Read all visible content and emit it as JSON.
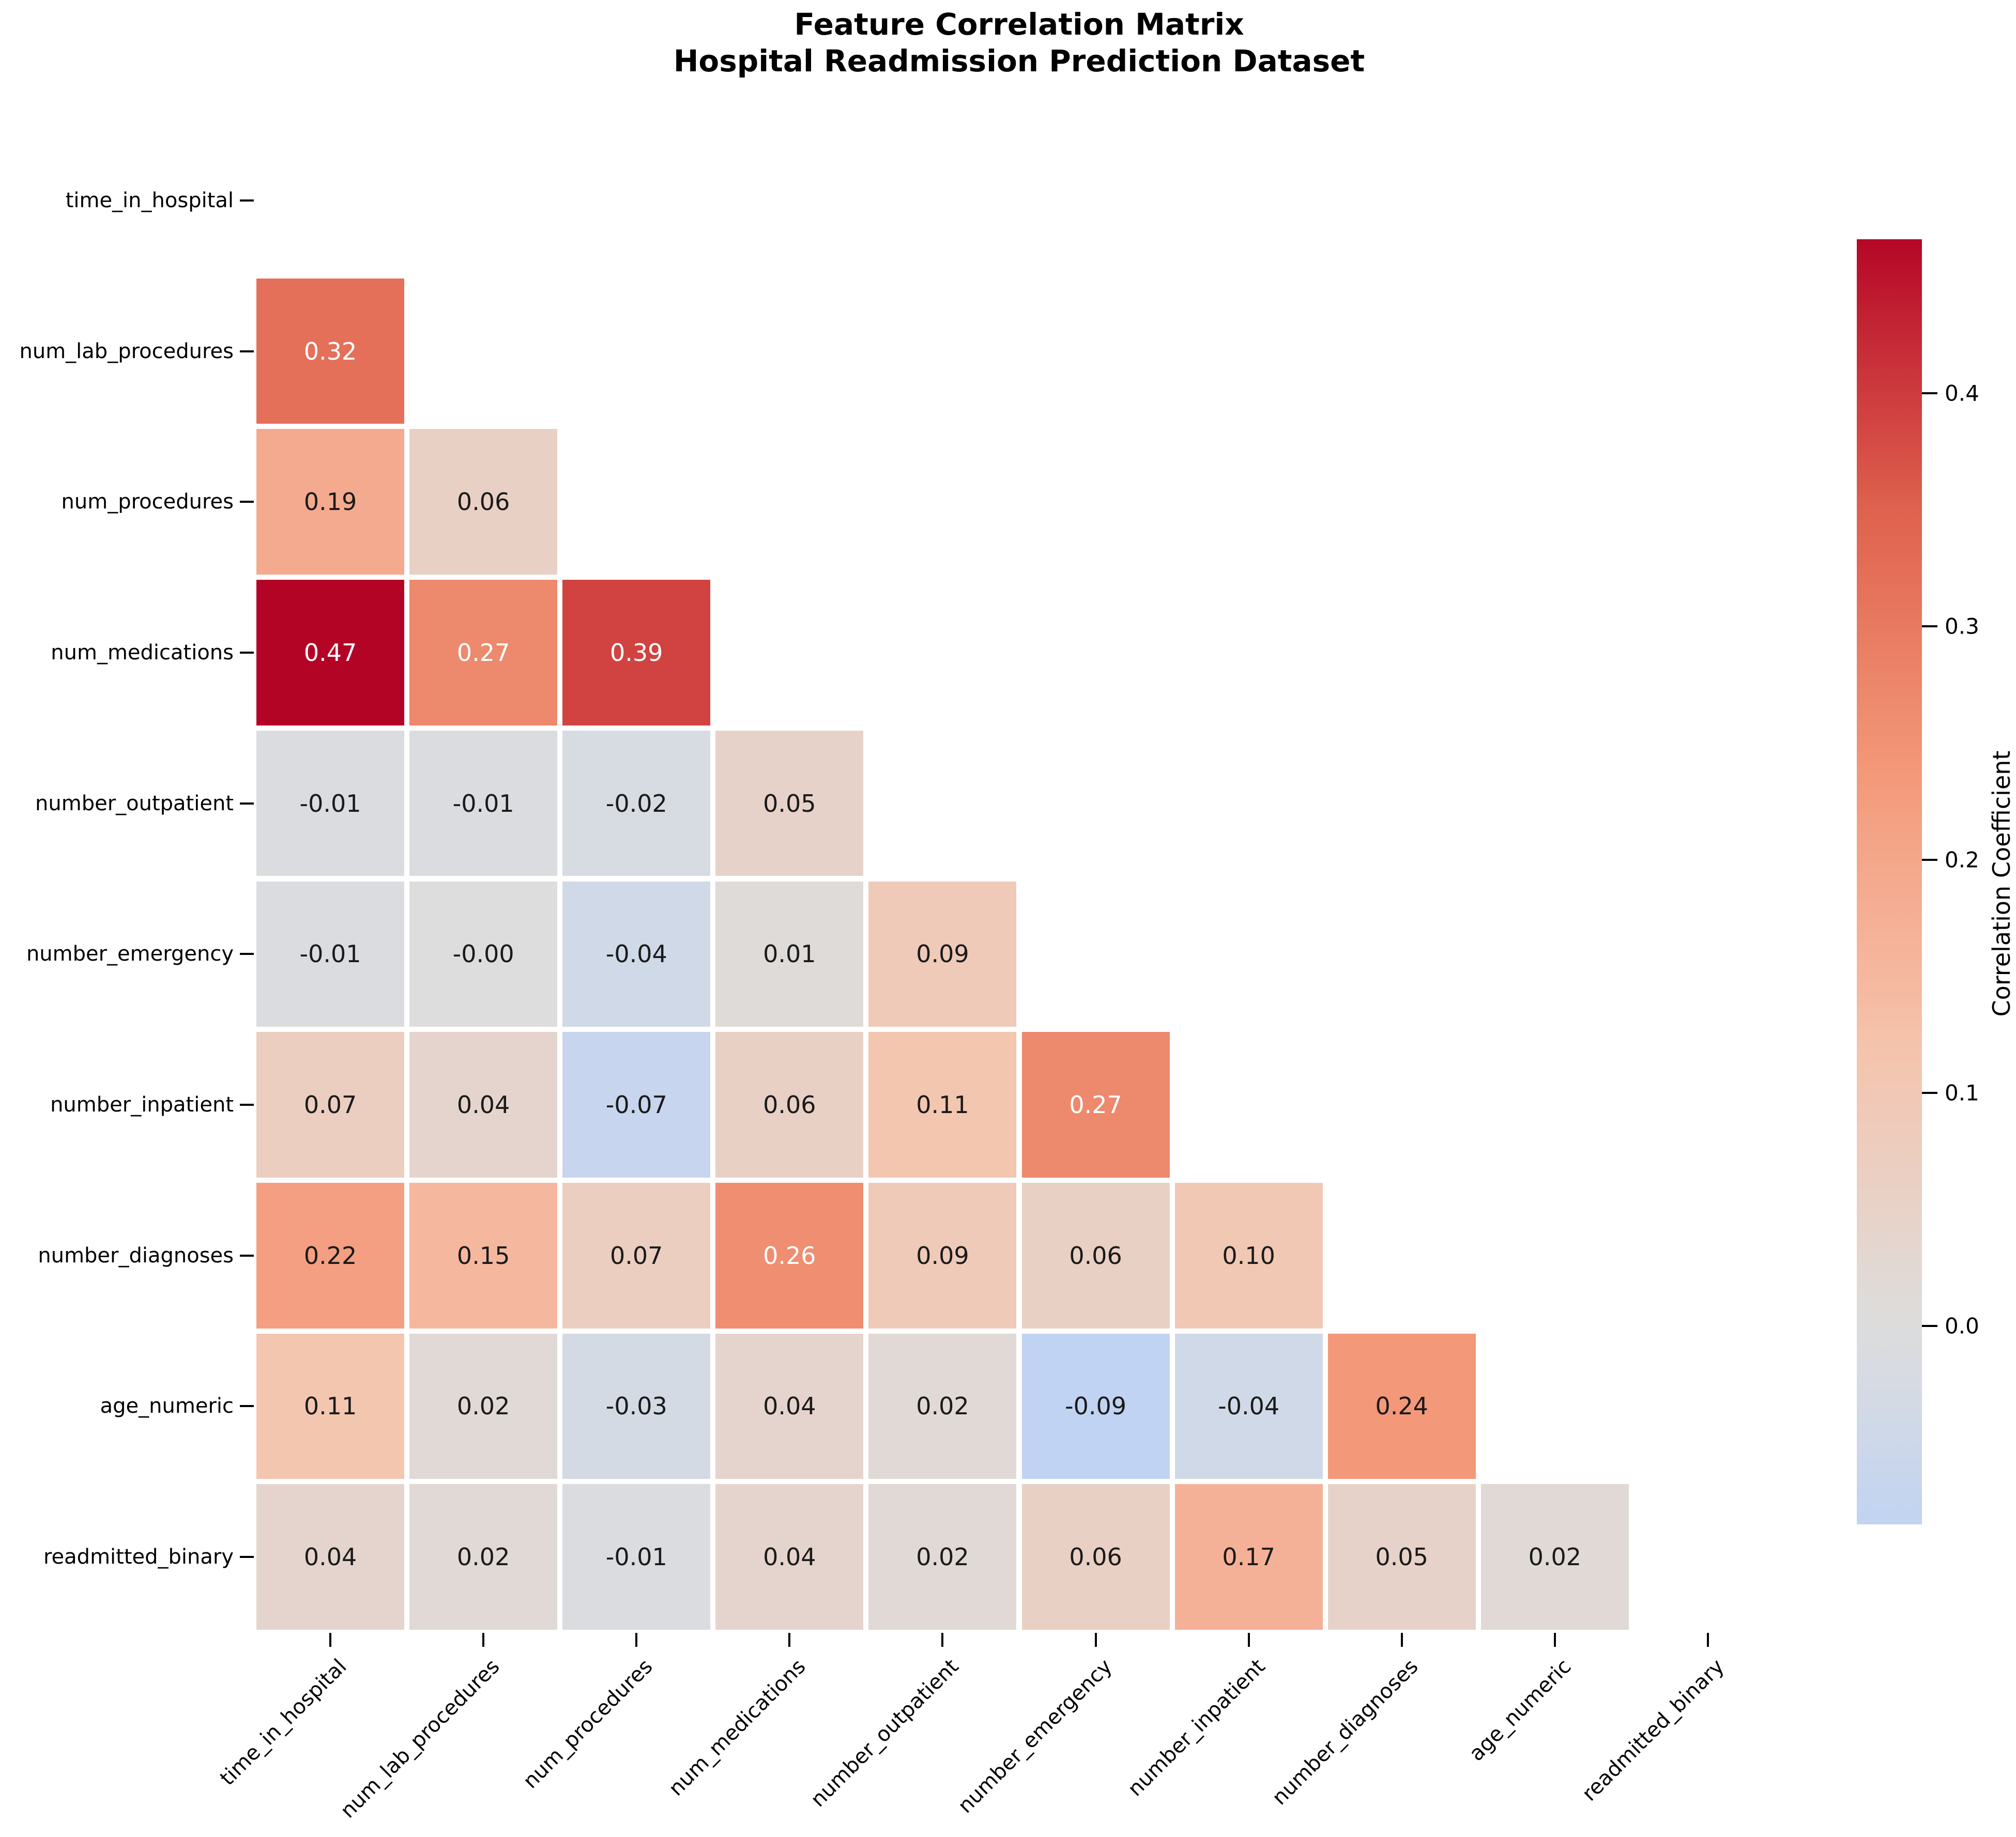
{
  "title": {
    "line1": "Feature Correlation Matrix",
    "line2": "Hospital Readmission Prediction Dataset"
  },
  "chart_data": {
    "type": "heatmap",
    "subtype": "lower-triangle-correlation-matrix",
    "features": [
      "time_in_hospital",
      "num_lab_procedures",
      "num_procedures",
      "num_medications",
      "number_outpatient",
      "number_emergency",
      "number_inpatient",
      "number_diagnoses",
      "age_numeric",
      "readmitted_binary"
    ],
    "rows": [
      {
        "feature": "time_in_hospital",
        "values": [],
        "labels": []
      },
      {
        "feature": "num_lab_procedures",
        "values": [
          0.32
        ],
        "labels": [
          "0.32"
        ]
      },
      {
        "feature": "num_procedures",
        "values": [
          0.19,
          0.06
        ],
        "labels": [
          "0.19",
          "0.06"
        ]
      },
      {
        "feature": "num_medications",
        "values": [
          0.47,
          0.27,
          0.39
        ],
        "labels": [
          "0.47",
          "0.27",
          "0.39"
        ]
      },
      {
        "feature": "number_outpatient",
        "values": [
          -0.01,
          -0.01,
          -0.02,
          0.05
        ],
        "labels": [
          "-0.01",
          "-0.01",
          "-0.02",
          "0.05"
        ]
      },
      {
        "feature": "number_emergency",
        "values": [
          -0.01,
          0,
          -0.04,
          0.01,
          0.09
        ],
        "labels": [
          "-0.01",
          "-0.00",
          "-0.04",
          "0.01",
          "0.09"
        ]
      },
      {
        "feature": "number_inpatient",
        "values": [
          0.07,
          0.04,
          -0.07,
          0.06,
          0.11,
          0.27
        ],
        "labels": [
          "0.07",
          "0.04",
          "-0.07",
          "0.06",
          "0.11",
          "0.27"
        ]
      },
      {
        "feature": "number_diagnoses",
        "values": [
          0.22,
          0.15,
          0.07,
          0.26,
          0.09,
          0.06,
          0.1
        ],
        "labels": [
          "0.22",
          "0.15",
          "0.07",
          "0.26",
          "0.09",
          "0.06",
          "0.10"
        ]
      },
      {
        "feature": "age_numeric",
        "values": [
          0.11,
          0.02,
          -0.03,
          0.04,
          0.02,
          -0.09,
          -0.04,
          0.24
        ],
        "labels": [
          "0.11",
          "0.02",
          "-0.03",
          "0.04",
          "0.02",
          "-0.09",
          "-0.04",
          "0.24"
        ]
      },
      {
        "feature": "readmitted_binary",
        "values": [
          0.04,
          0.02,
          -0.01,
          0.04,
          0.02,
          0.06,
          0.17,
          0.05,
          0.02
        ],
        "labels": [
          "0.04",
          "0.02",
          "-0.01",
          "0.04",
          "0.02",
          "0.06",
          "0.17",
          "0.05",
          "0.02"
        ]
      }
    ],
    "color_scale": {
      "colormap": "coolwarm",
      "center": 0,
      "vmax_abs": 0.47,
      "max_color": "#b40426",
      "center_color": "#dddddd",
      "min_shown_color": "#c1d3f2",
      "annot_dark_text": "#1a1a1a",
      "annot_light_text": "#ffffff"
    },
    "colorbar": {
      "label": "Correlation Coefficient",
      "ticks": [
        "0.4",
        "0.3",
        "0.2",
        "0.1",
        "0.0"
      ],
      "tick_values": [
        0.4,
        0.3,
        0.2,
        0.1,
        0.0
      ],
      "range_min": -0.085,
      "range_max": 0.466
    },
    "grid": true,
    "xlabel": "",
    "ylabel": ""
  }
}
